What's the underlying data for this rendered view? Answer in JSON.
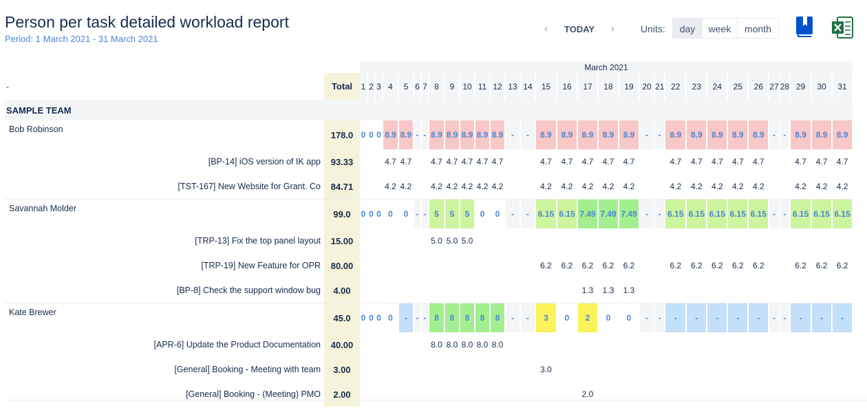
{
  "header": {
    "title": "Person per task detailed workload report",
    "period": "Period: 1 March 2021 - 31 March 2021",
    "prev_arrow": "‹",
    "next_arrow": "›",
    "today_label": "TODAY",
    "units_label": "Units:",
    "units": [
      "day",
      "week",
      "month"
    ],
    "active_unit": "day",
    "icons": [
      "report-book-icon",
      "excel-export-icon"
    ]
  },
  "colors": {
    "over": "#f8c7c7",
    "full": "#a3ef8f",
    "partial": "#cdf49f",
    "low": "#fbf35a",
    "free": "#c3dffa",
    "weekend": "#f4f5f7",
    "total_bg": "#f5f3dc",
    "link_blue": "#4a86d4"
  },
  "grid": {
    "month_label": "March 2021",
    "corner_label": "-",
    "total_label": "Total",
    "days": [
      "1",
      "2",
      "3",
      "4",
      "5",
      "6",
      "7",
      "8",
      "9",
      "10",
      "11",
      "12",
      "13",
      "14",
      "15",
      "16",
      "17",
      "18",
      "19",
      "20",
      "21",
      "22",
      "23",
      "24",
      "25",
      "26",
      "27",
      "28",
      "29",
      "30",
      "31"
    ],
    "team": "SAMPLE TEAM",
    "people": [
      {
        "name": "Bob Robinson",
        "total": "178.0",
        "cells": [
          {
            "v": "0",
            "c": ""
          },
          {
            "v": "0",
            "c": ""
          },
          {
            "v": "0",
            "c": ""
          },
          {
            "v": "8.9",
            "c": "over"
          },
          {
            "v": "8.9",
            "c": "over"
          },
          {
            "v": "-",
            "c": "weekend"
          },
          {
            "v": "-",
            "c": "weekend"
          },
          {
            "v": "8.9",
            "c": "over"
          },
          {
            "v": "8.9",
            "c": "over"
          },
          {
            "v": "8.9",
            "c": "over"
          },
          {
            "v": "8.9",
            "c": "over"
          },
          {
            "v": "8.9",
            "c": "over"
          },
          {
            "v": "-",
            "c": "weekend"
          },
          {
            "v": "-",
            "c": "weekend"
          },
          {
            "v": "8.9",
            "c": "over"
          },
          {
            "v": "8.9",
            "c": "over"
          },
          {
            "v": "8.9",
            "c": "over"
          },
          {
            "v": "8.9",
            "c": "over"
          },
          {
            "v": "8.9",
            "c": "over"
          },
          {
            "v": "-",
            "c": "weekend"
          },
          {
            "v": "-",
            "c": "weekend"
          },
          {
            "v": "8.9",
            "c": "over"
          },
          {
            "v": "8.9",
            "c": "over"
          },
          {
            "v": "8.9",
            "c": "over"
          },
          {
            "v": "8.9",
            "c": "over"
          },
          {
            "v": "8.9",
            "c": "over"
          },
          {
            "v": "-",
            "c": "weekend"
          },
          {
            "v": "-",
            "c": "weekend"
          },
          {
            "v": "8.9",
            "c": "over"
          },
          {
            "v": "8.9",
            "c": "over"
          },
          {
            "v": "8.9",
            "c": "over"
          }
        ],
        "tasks": [
          {
            "name": "[BP-14] iOS version of IK app",
            "total": "93.33",
            "cells": [
              "",
              "",
              "",
              "4.7",
              "4.7",
              "",
              "",
              "4.7",
              "4.7",
              "4.7",
              "4.7",
              "4.7",
              "",
              "",
              "4.7",
              "4.7",
              "4.7",
              "4.7",
              "4.7",
              "",
              "",
              "4.7",
              "4.7",
              "4.7",
              "4.7",
              "4.7",
              "",
              "",
              "4.7",
              "4.7",
              "4.7"
            ]
          },
          {
            "name": "[TST-167] New Website for Grant. Co",
            "total": "84.71",
            "cells": [
              "",
              "",
              "",
              "4.2",
              "4.2",
              "",
              "",
              "4.2",
              "4.2",
              "4.2",
              "4.2",
              "4.2",
              "",
              "",
              "4.2",
              "4.2",
              "4.2",
              "4.2",
              "4.2",
              "",
              "",
              "4.2",
              "4.2",
              "4.2",
              "4.2",
              "4.2",
              "",
              "",
              "4.2",
              "4.2",
              "4.2"
            ]
          }
        ]
      },
      {
        "name": "Savannah Molder",
        "total": "99.0",
        "cells": [
          {
            "v": "0",
            "c": ""
          },
          {
            "v": "0",
            "c": ""
          },
          {
            "v": "0",
            "c": ""
          },
          {
            "v": "0",
            "c": ""
          },
          {
            "v": "0",
            "c": ""
          },
          {
            "v": "-",
            "c": "weekend"
          },
          {
            "v": "-",
            "c": "weekend"
          },
          {
            "v": "5",
            "c": "partial"
          },
          {
            "v": "5",
            "c": "partial"
          },
          {
            "v": "5",
            "c": "partial"
          },
          {
            "v": "0",
            "c": ""
          },
          {
            "v": "0",
            "c": ""
          },
          {
            "v": "-",
            "c": "weekend"
          },
          {
            "v": "-",
            "c": "weekend"
          },
          {
            "v": "6.15",
            "c": "partial"
          },
          {
            "v": "6.15",
            "c": "partial"
          },
          {
            "v": "7.49",
            "c": "full"
          },
          {
            "v": "7.49",
            "c": "full"
          },
          {
            "v": "7.49",
            "c": "full"
          },
          {
            "v": "-",
            "c": "weekend"
          },
          {
            "v": "-",
            "c": "weekend"
          },
          {
            "v": "6.15",
            "c": "partial"
          },
          {
            "v": "6.15",
            "c": "partial"
          },
          {
            "v": "6.15",
            "c": "partial"
          },
          {
            "v": "6.15",
            "c": "partial"
          },
          {
            "v": "6.15",
            "c": "partial"
          },
          {
            "v": "-",
            "c": "weekend"
          },
          {
            "v": "-",
            "c": "weekend"
          },
          {
            "v": "6.15",
            "c": "partial"
          },
          {
            "v": "6.15",
            "c": "partial"
          },
          {
            "v": "6.15",
            "c": "partial"
          }
        ],
        "tasks": [
          {
            "name": "[TRP-13] Fix the top panel layout",
            "total": "15.00",
            "cells": [
              "",
              "",
              "",
              "",
              "",
              "",
              "",
              "5.0",
              "5.0",
              "5.0",
              "",
              "",
              "",
              "",
              "",
              "",
              "",
              "",
              "",
              "",
              "",
              "",
              "",
              "",
              "",
              "",
              "",
              "",
              "",
              "",
              ""
            ]
          },
          {
            "name": "[TRP-19] New Feature for OPR",
            "total": "80.00",
            "cells": [
              "",
              "",
              "",
              "",
              "",
              "",
              "",
              "",
              "",
              "",
              "",
              "",
              "",
              "",
              "6.2",
              "6.2",
              "6.2",
              "6.2",
              "6.2",
              "",
              "",
              "6.2",
              "6.2",
              "6.2",
              "6.2",
              "6.2",
              "",
              "",
              "6.2",
              "6.2",
              "6.2"
            ]
          },
          {
            "name": "[BP-8] Check the support window bug",
            "total": "4.00",
            "cells": [
              "",
              "",
              "",
              "",
              "",
              "",
              "",
              "",
              "",
              "",
              "",
              "",
              "",
              "",
              "",
              "",
              "1.3",
              "1.3",
              "1.3",
              "",
              "",
              "",
              "",
              "",
              "",
              "",
              "",
              "",
              "",
              "",
              ""
            ]
          }
        ]
      },
      {
        "name": "Kate Brewer",
        "total": "45.0",
        "cells": [
          {
            "v": "0",
            "c": ""
          },
          {
            "v": "0",
            "c": ""
          },
          {
            "v": "0",
            "c": ""
          },
          {
            "v": "0",
            "c": ""
          },
          {
            "v": "-",
            "c": "free"
          },
          {
            "v": "-",
            "c": "weekend"
          },
          {
            "v": "-",
            "c": "weekend"
          },
          {
            "v": "8",
            "c": "full"
          },
          {
            "v": "8",
            "c": "full"
          },
          {
            "v": "8",
            "c": "full"
          },
          {
            "v": "8",
            "c": "full"
          },
          {
            "v": "8",
            "c": "full"
          },
          {
            "v": "-",
            "c": "weekend"
          },
          {
            "v": "-",
            "c": "weekend"
          },
          {
            "v": "3",
            "c": "low"
          },
          {
            "v": "0",
            "c": ""
          },
          {
            "v": "2",
            "c": "low"
          },
          {
            "v": "0",
            "c": ""
          },
          {
            "v": "0",
            "c": ""
          },
          {
            "v": "-",
            "c": "weekend"
          },
          {
            "v": "-",
            "c": "weekend"
          },
          {
            "v": "-",
            "c": "free"
          },
          {
            "v": "-",
            "c": "free"
          },
          {
            "v": "-",
            "c": "free"
          },
          {
            "v": "-",
            "c": "free"
          },
          {
            "v": "-",
            "c": "free"
          },
          {
            "v": "-",
            "c": "weekend"
          },
          {
            "v": "-",
            "c": "weekend"
          },
          {
            "v": "-",
            "c": "free"
          },
          {
            "v": "-",
            "c": "free"
          },
          {
            "v": "-",
            "c": "free"
          }
        ],
        "tasks": [
          {
            "name": "[APR-6] Update the Product Documentation",
            "total": "40.00",
            "cells": [
              "",
              "",
              "",
              "",
              "",
              "",
              "",
              "8.0",
              "8.0",
              "8.0",
              "8.0",
              "8.0",
              "",
              "",
              "",
              "",
              "",
              "",
              "",
              "",
              "",
              "",
              "",
              "",
              "",
              "",
              "",
              "",
              "",
              "",
              ""
            ]
          },
          {
            "name": "[General] Booking - Meeting with team",
            "total": "3.00",
            "cells": [
              "",
              "",
              "",
              "",
              "",
              "",
              "",
              "",
              "",
              "",
              "",
              "",
              "",
              "",
              "3.0",
              "",
              "",
              "",
              "",
              "",
              "",
              "",
              "",
              "",
              "",
              "",
              "",
              "",
              "",
              "",
              ""
            ]
          },
          {
            "name": "[General] Booking - (Meeting) PMO",
            "total": "2.00",
            "cells": [
              "",
              "",
              "",
              "",
              "",
              "",
              "",
              "",
              "",
              "",
              "",
              "",
              "",
              "",
              "",
              "",
              "2.0",
              "",
              "",
              "",
              "",
              "",
              "",
              "",
              "",
              "",
              "",
              "",
              "",
              "",
              ""
            ]
          }
        ]
      }
    ]
  }
}
